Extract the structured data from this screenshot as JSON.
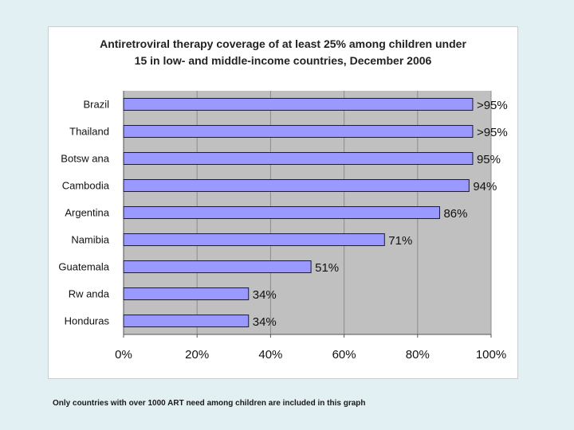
{
  "chart_data": {
    "type": "bar",
    "orientation": "horizontal",
    "title_lines": [
      "Antiretroviral therapy coverage of at least  25% among children under",
      "15 in low- and middle-income countries, December 2006"
    ],
    "categories": [
      "Brazil",
      "Thailand",
      "Botsw ana",
      "Cambodia",
      "Argentina",
      "Namibia",
      "Guatemala",
      "Rw anda",
      "Honduras"
    ],
    "values": [
      95,
      95,
      95,
      94,
      86,
      71,
      51,
      34,
      34
    ],
    "data_labels": [
      ">95%",
      ">95%",
      "95%",
      "94%",
      "86%",
      "71%",
      "51%",
      "34%",
      "34%"
    ],
    "xlim": [
      0,
      100
    ],
    "x_ticks": [
      0,
      20,
      40,
      60,
      80,
      100
    ],
    "x_tick_labels": [
      "0%",
      "20%",
      "40%",
      "60%",
      "80%",
      "100%"
    ],
    "grid": "vertical",
    "legend": "none",
    "colors": {
      "bar_fill": "#9999ff",
      "bar_stroke": "#1a1a33",
      "plot_background": "#c0c0c0",
      "gridline": "#8c8c8c"
    }
  },
  "footnote": "Only countries with over 1000 ART need among children are included in this graph"
}
